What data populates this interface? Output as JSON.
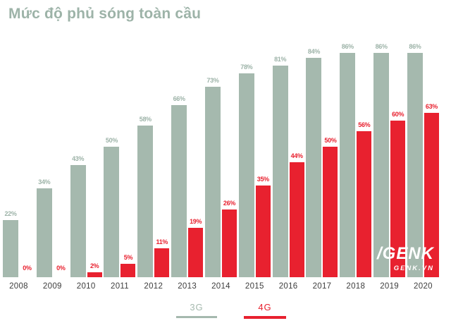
{
  "page": {
    "title": "Mức độ phủ sóng toàn cầu"
  },
  "colors": {
    "sage": "#a5b9ae",
    "sage_text": "#9db3a8",
    "red": "#e8212f",
    "year_text": "#3d3d3d",
    "watermark_text": "#ffffff",
    "background": "#ffffff"
  },
  "chart_data": {
    "type": "bar",
    "title": "Mức độ phủ sóng toàn cầu",
    "categories": [
      "2008",
      "2009",
      "2010",
      "2011",
      "2012",
      "2013",
      "2014",
      "2015",
      "2016",
      "2017",
      "2018",
      "2019",
      "2020"
    ],
    "series": [
      {
        "name": "3G",
        "color": "#a5b9ae",
        "label_color": "#9db3a8",
        "values": [
          22,
          34,
          43,
          50,
          58,
          66,
          73,
          78,
          81,
          84,
          86,
          86,
          86
        ]
      },
      {
        "name": "4G",
        "color": "#e8212f",
        "label_color": "#e8212f",
        "values": [
          0,
          0,
          2,
          5,
          11,
          19,
          26,
          35,
          44,
          50,
          56,
          60,
          63
        ]
      }
    ],
    "value_suffix": "%",
    "ylim": [
      0,
      100
    ],
    "grid": false,
    "axes_visible": false,
    "bar_labels": true,
    "legend_position": "bottom-center"
  },
  "legend": {
    "items": [
      {
        "label": "3G",
        "color": "#a5b9ae"
      },
      {
        "label": "4G",
        "color": "#e8212f"
      }
    ]
  },
  "watermark": {
    "logo": "/GENK",
    "site": "GENK.VN"
  }
}
